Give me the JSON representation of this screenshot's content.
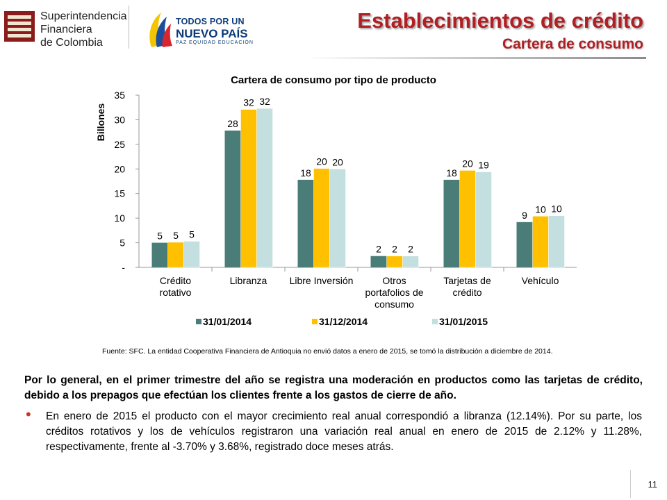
{
  "header": {
    "sfc_name_lines": [
      "Superintendencia",
      "Financiera",
      "de Colombia"
    ],
    "gov_line1": "TODOS POR UN",
    "gov_line2": "NUEVO PAÍS",
    "gov_line3": "PAZ  EQUIDAD  EDUCACIÓN",
    "title": "Establecimientos de crédito",
    "subtitle": "Cartera de consumo"
  },
  "colors": {
    "title_red": "#b01f24",
    "series1": "#4a7d78",
    "series2": "#ffc000",
    "series3": "#c4dfe0",
    "gov_blue": "#0a3a78"
  },
  "chart_data": {
    "type": "bar",
    "title": "Cartera de consumo por tipo de producto",
    "ylabel": "Billones",
    "ylim": [
      0,
      35
    ],
    "yticks": [
      "-",
      "5",
      "10",
      "15",
      "20",
      "25",
      "30",
      "35"
    ],
    "categories": [
      [
        "Crédito",
        "rotativo"
      ],
      [
        "Libranza"
      ],
      [
        "Libre Inversión"
      ],
      [
        "Otros",
        "portafolios de",
        "consumo"
      ],
      [
        "Tarjetas de",
        "crédito"
      ],
      [
        "Vehículo"
      ]
    ],
    "series": [
      {
        "name": "31/01/2014",
        "values": [
          5.0,
          27.8,
          17.8,
          2.3,
          17.8,
          9.2
        ],
        "labels": [
          "5",
          "28",
          "18",
          "2",
          "18",
          "9"
        ]
      },
      {
        "name": "31/12/2014",
        "values": [
          5.1,
          32.1,
          20.1,
          2.3,
          19.7,
          10.4
        ],
        "labels": [
          "5",
          "32",
          "20",
          "2",
          "20",
          "10"
        ]
      },
      {
        "name": "31/01/2015",
        "values": [
          5.3,
          32.3,
          20.0,
          2.3,
          19.4,
          10.5
        ],
        "labels": [
          "5",
          "32",
          "20",
          "2",
          "19",
          "10"
        ]
      }
    ],
    "legend_position": "bottom",
    "grid": false
  },
  "source_note": "Fuente: SFC. La entidad Cooperativa Financiera de Antioquia no envió datos a enero de 2015, se tomó la distribución a diciembre de 2014.",
  "paragraph": "Por lo general, en el primer trimestre del año se registra una moderación en productos como las tarjetas de crédito, debido a los prepagos que efectúan los clientes frente a los gastos de cierre de año.",
  "bullet": "En enero de 2015 el producto con el mayor crecimiento real anual correspondió a libranza (12.14%). Por su parte, los créditos rotativos y los de vehículos registraron una variación real anual en enero de 2015 de 2.12% y 11.28%, respectivamente, frente al -3.70% y 3.68%, registrado doce meses atrás.",
  "page_number": "11"
}
